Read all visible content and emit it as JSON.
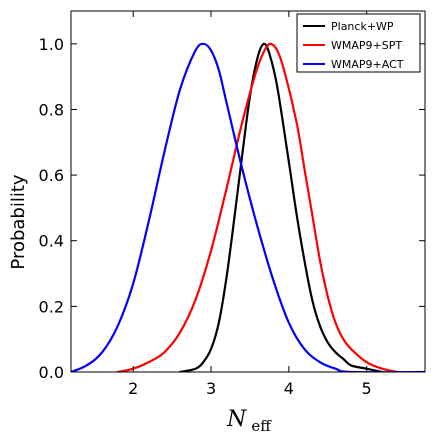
{
  "chart_data": {
    "type": "line",
    "title": "",
    "xlabel": "N",
    "xlabel_subscript": "eff",
    "ylabel": "Probability",
    "xlim": [
      1.2,
      5.75
    ],
    "ylim": [
      0.0,
      1.1
    ],
    "x_ticks": [
      2,
      3,
      4,
      5
    ],
    "x_tick_labels": [
      "2",
      "3",
      "4",
      "5"
    ],
    "y_ticks": [
      0.0,
      0.2,
      0.4,
      0.6,
      0.8,
      1.0
    ],
    "y_tick_labels": [
      "0.0",
      "0.2",
      "0.4",
      "0.6",
      "0.8",
      "1.0"
    ],
    "grid": false,
    "legend_position": "top-right",
    "series": [
      {
        "name": "Planck+WP",
        "color": "#000000",
        "points": [
          [
            2.6,
            0.0
          ],
          [
            2.8,
            0.01
          ],
          [
            2.9,
            0.03
          ],
          [
            3.0,
            0.07
          ],
          [
            3.1,
            0.15
          ],
          [
            3.2,
            0.29
          ],
          [
            3.3,
            0.47
          ],
          [
            3.4,
            0.66
          ],
          [
            3.5,
            0.84
          ],
          [
            3.6,
            0.96
          ],
          [
            3.68,
            1.0
          ],
          [
            3.75,
            0.97
          ],
          [
            3.85,
            0.87
          ],
          [
            4.0,
            0.64
          ],
          [
            4.1,
            0.48
          ],
          [
            4.2,
            0.34
          ],
          [
            4.3,
            0.22
          ],
          [
            4.4,
            0.14
          ],
          [
            4.5,
            0.09
          ],
          [
            4.6,
            0.06
          ],
          [
            4.7,
            0.04
          ],
          [
            4.8,
            0.02
          ],
          [
            5.0,
            0.01
          ],
          [
            5.2,
            0.0
          ]
        ]
      },
      {
        "name": "WMAP9+SPT",
        "color": "#ff0000",
        "points": [
          [
            1.8,
            0.0
          ],
          [
            2.0,
            0.01
          ],
          [
            2.2,
            0.03
          ],
          [
            2.4,
            0.06
          ],
          [
            2.6,
            0.12
          ],
          [
            2.8,
            0.22
          ],
          [
            3.0,
            0.37
          ],
          [
            3.2,
            0.56
          ],
          [
            3.4,
            0.76
          ],
          [
            3.6,
            0.93
          ],
          [
            3.75,
            1.0
          ],
          [
            3.85,
            0.98
          ],
          [
            3.95,
            0.91
          ],
          [
            4.1,
            0.76
          ],
          [
            4.2,
            0.62
          ],
          [
            4.3,
            0.48
          ],
          [
            4.4,
            0.34
          ],
          [
            4.5,
            0.23
          ],
          [
            4.6,
            0.15
          ],
          [
            4.7,
            0.1
          ],
          [
            4.8,
            0.07
          ],
          [
            5.0,
            0.03
          ],
          [
            5.2,
            0.01
          ],
          [
            5.4,
            0.0
          ]
        ]
      },
      {
        "name": "WMAP9+ACT",
        "color": "#0000ff",
        "points": [
          [
            1.2,
            0.0
          ],
          [
            1.4,
            0.02
          ],
          [
            1.6,
            0.06
          ],
          [
            1.8,
            0.14
          ],
          [
            2.0,
            0.27
          ],
          [
            2.2,
            0.46
          ],
          [
            2.4,
            0.67
          ],
          [
            2.6,
            0.86
          ],
          [
            2.8,
            0.98
          ],
          [
            2.9,
            1.0
          ],
          [
            3.0,
            0.98
          ],
          [
            3.1,
            0.92
          ],
          [
            3.2,
            0.82
          ],
          [
            3.4,
            0.62
          ],
          [
            3.6,
            0.44
          ],
          [
            3.8,
            0.28
          ],
          [
            4.0,
            0.15
          ],
          [
            4.2,
            0.07
          ],
          [
            4.4,
            0.03
          ],
          [
            4.6,
            0.01
          ],
          [
            4.8,
            0.0
          ],
          [
            5.75,
            0.0
          ]
        ]
      }
    ]
  }
}
